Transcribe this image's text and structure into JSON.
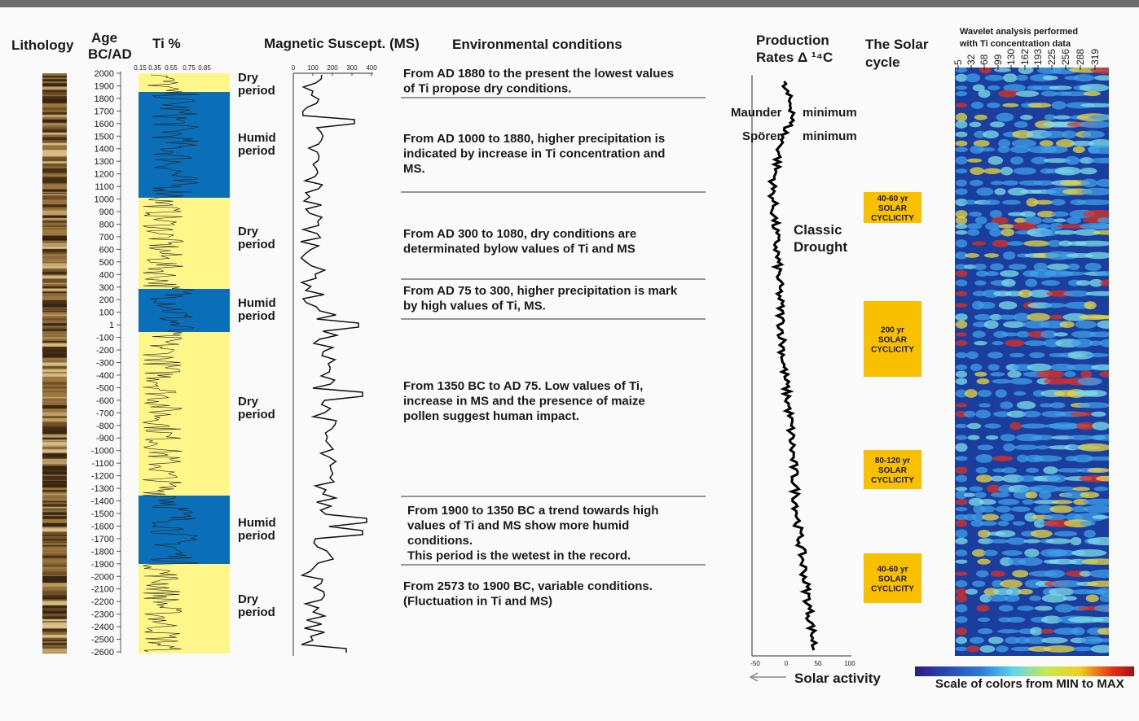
{
  "headers": {
    "lithology": "Lithology",
    "age": [
      "Age",
      "BC/AD"
    ],
    "ti": "Ti %",
    "ms": "Magnetic Suscept. (MS)",
    "env": "Environmental conditions",
    "production": [
      "Production",
      "Rates Δ ¹⁴C"
    ],
    "solar": [
      "The Solar",
      "cycle"
    ],
    "wavelet": [
      "Wavelet analysis performed",
      "with  Ti  concentration data"
    ]
  },
  "age_labels": [
    "2000",
    "1900",
    "1800",
    "1700",
    "1600",
    "1500",
    "1400",
    "1300",
    "1200",
    "1100",
    "1000",
    "900",
    "800",
    "700",
    "600",
    "500",
    "400",
    "300",
    "200",
    "100",
    "1",
    "-100",
    "-200",
    "-300",
    "-400",
    "-500",
    "-600",
    "-700",
    "-800",
    "-900",
    "-1000",
    "-1100",
    "-1200",
    "-1300",
    "-1400",
    "-1500",
    "-1600",
    "-1700",
    "-1800",
    "-1900",
    "-2000",
    "-2100",
    "-2200",
    "-2300",
    "-2400",
    "-2500",
    "-2600"
  ],
  "ti_ticks": [
    "0.15",
    "0.35",
    "0.55",
    "0.75",
    "0.85"
  ],
  "ms_ticks": [
    "0",
    "100",
    "200",
    "300",
    "400"
  ],
  "production_ticks": [
    "-50",
    "0",
    "50",
    "100"
  ],
  "wavelet_periods": [
    "5",
    "32",
    "68",
    "99",
    "130",
    "162",
    "193",
    "225",
    "256",
    "288",
    "319"
  ],
  "periods": [
    [
      "Dry",
      "period"
    ],
    [
      "Humid",
      "period"
    ],
    [
      "Dry",
      "period"
    ],
    [
      "Humid",
      "period"
    ],
    [
      "Dry",
      "period"
    ],
    [
      "Humid",
      "period"
    ],
    [
      "Dry",
      "period"
    ]
  ],
  "env_blocks": [
    [
      "From AD 1880 to the present the lowest values",
      "of Ti propose dry conditions."
    ],
    [
      "From AD 1000 to 1880, higher precipitation is",
      "indicated by increase in Ti concentration and",
      "MS."
    ],
    [
      "From AD 300 to 1080, dry conditions are",
      "determinated bylow values of Ti and MS"
    ],
    [
      "From AD 75 to 300, higher precipitation is mark",
      "by high values of Ti, MS."
    ],
    [
      "From 1350 BC to AD 75.  Low values of Ti,",
      "increase in MS and the presence of maize",
      "pollen suggest human impact."
    ],
    [
      "From 1900 to 1350 BC a trend towards high",
      "values of Ti and MS show more humid",
      "conditions.",
      "This period is the wetest in the record."
    ],
    [
      "From 2573 to 1900 BC, variable conditions.",
      "(Fluctuation in Ti and MS)"
    ]
  ],
  "annotations": {
    "maunder": [
      "Maunder",
      "minimum"
    ],
    "sporer": [
      "Spörer",
      "minimum"
    ],
    "drought": [
      "Classic",
      "Drought"
    ],
    "solar_activity": "Solar activity",
    "color_scale": "Scale of colors from MIN to MAX"
  },
  "solar_boxes": [
    [
      "40-60 yr",
      "SOLAR",
      "CYCLICITY"
    ],
    [
      "200 yr",
      "SOLAR",
      "CYCLICITY"
    ],
    [
      "80-120 yr",
      "SOLAR",
      "CYCLICITY"
    ],
    [
      "40-60 yr",
      "SOLAR",
      "CYCLICITY"
    ]
  ]
}
